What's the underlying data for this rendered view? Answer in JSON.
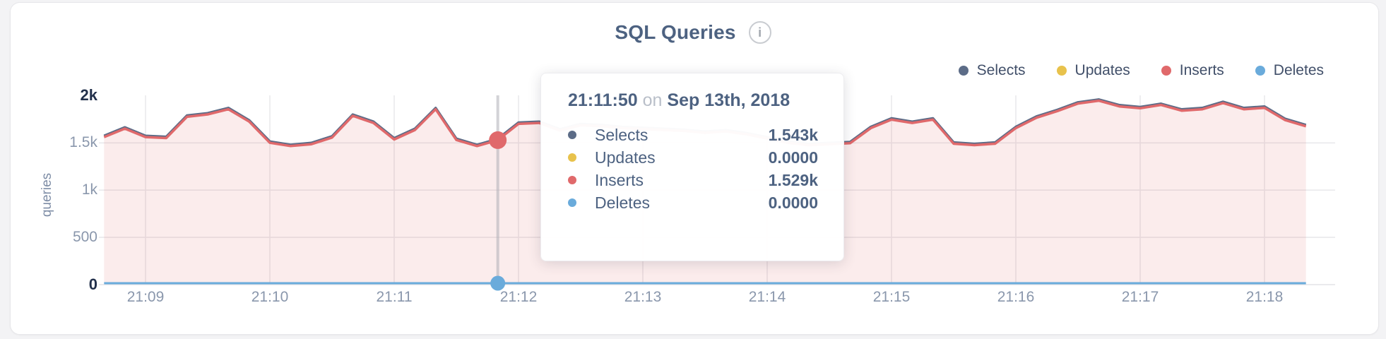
{
  "header": {
    "title": "SQL Queries",
    "info_icon_glyph": "i"
  },
  "legend": {
    "items": [
      {
        "label": "Selects",
        "color": "#5c6c87"
      },
      {
        "label": "Updates",
        "color": "#e8c24c"
      },
      {
        "label": "Inserts",
        "color": "#e0696b"
      },
      {
        "label": "Deletes",
        "color": "#6aabdb"
      }
    ]
  },
  "tooltip": {
    "time": "21:11:50",
    "connector": "on",
    "date": "Sep 13th, 2018",
    "rows": [
      {
        "label": "Selects",
        "value": "1.543k",
        "color": "#5c6c87"
      },
      {
        "label": "Updates",
        "value": "0.0000",
        "color": "#e8c24c"
      },
      {
        "label": "Inserts",
        "value": "1.529k",
        "color": "#e0696b"
      },
      {
        "label": "Deletes",
        "value": "0.0000",
        "color": "#6aabdb"
      }
    ]
  },
  "axes": {
    "y_label": "queries",
    "y_ticks": [
      {
        "label": "2k",
        "value": 2000,
        "strong": true
      },
      {
        "label": "1.5k",
        "value": 1500,
        "strong": false
      },
      {
        "label": "1k",
        "value": 1000,
        "strong": false
      },
      {
        "label": "500",
        "value": 500,
        "strong": false
      },
      {
        "label": "0",
        "value": 0,
        "strong": true
      }
    ],
    "x_ticks": [
      "21:09",
      "21:10",
      "21:11",
      "21:12",
      "21:13",
      "21:14",
      "21:15",
      "21:16",
      "21:17",
      "21:18"
    ]
  },
  "chart_data": {
    "type": "area",
    "title": "SQL Queries",
    "ylabel": "queries",
    "ylim": [
      0,
      2000
    ],
    "grid": true,
    "legend_position": "top-right",
    "x": [
      "21:08:40",
      "21:08:50",
      "21:09:00",
      "21:09:10",
      "21:09:20",
      "21:09:30",
      "21:09:40",
      "21:09:50",
      "21:10:00",
      "21:10:10",
      "21:10:20",
      "21:10:30",
      "21:10:40",
      "21:10:50",
      "21:11:00",
      "21:11:10",
      "21:11:20",
      "21:11:30",
      "21:11:40",
      "21:11:50",
      "21:12:00",
      "21:12:10",
      "21:12:20",
      "21:12:30",
      "21:12:40",
      "21:12:50",
      "21:13:00",
      "21:13:10",
      "21:13:20",
      "21:13:30",
      "21:13:40",
      "21:13:50",
      "21:14:00",
      "21:14:10",
      "21:14:20",
      "21:14:30",
      "21:14:40",
      "21:14:50",
      "21:15:00",
      "21:15:10",
      "21:15:20",
      "21:15:30",
      "21:15:40",
      "21:15:50",
      "21:16:00",
      "21:16:10",
      "21:16:20",
      "21:16:30",
      "21:16:40",
      "21:16:50",
      "21:17:00",
      "21:17:10",
      "21:17:20",
      "21:17:30",
      "21:17:40",
      "21:17:50",
      "21:18:00",
      "21:18:10",
      "21:18:20"
    ],
    "series": [
      {
        "name": "Selects",
        "color": "#5c6c87",
        "values": [
          1575,
          1665,
          1575,
          1565,
          1790,
          1815,
          1870,
          1740,
          1515,
          1480,
          1500,
          1570,
          1800,
          1725,
          1550,
          1650,
          1870,
          1545,
          1480,
          1543,
          1715,
          1725,
          1645,
          1700,
          1690,
          1670,
          1660,
          1650,
          1640,
          1620,
          1635,
          1605,
          1560,
          1515,
          1490,
          1500,
          1510,
          1670,
          1760,
          1725,
          1760,
          1505,
          1490,
          1505,
          1670,
          1780,
          1850,
          1930,
          1960,
          1900,
          1880,
          1915,
          1855,
          1870,
          1935,
          1870,
          1885,
          1755,
          1690
        ]
      },
      {
        "name": "Updates",
        "color": "#e8c24c",
        "values": [
          0,
          0,
          0,
          0,
          0,
          0,
          0,
          0,
          0,
          0,
          0,
          0,
          0,
          0,
          0,
          0,
          0,
          0,
          0,
          0,
          0,
          0,
          0,
          0,
          0,
          0,
          0,
          0,
          0,
          0,
          0,
          0,
          0,
          0,
          0,
          0,
          0,
          0,
          0,
          0,
          0,
          0,
          0,
          0,
          0,
          0,
          0,
          0,
          0,
          0,
          0,
          0,
          0,
          0,
          0,
          0,
          0,
          0,
          0
        ]
      },
      {
        "name": "Inserts",
        "color": "#e0696b",
        "values": [
          1561,
          1651,
          1561,
          1551,
          1776,
          1801,
          1856,
          1726,
          1501,
          1466,
          1486,
          1556,
          1786,
          1711,
          1536,
          1636,
          1856,
          1531,
          1466,
          1529,
          1701,
          1711,
          1631,
          1686,
          1676,
          1656,
          1646,
          1636,
          1626,
          1606,
          1621,
          1591,
          1546,
          1501,
          1476,
          1486,
          1496,
          1656,
          1746,
          1711,
          1746,
          1491,
          1476,
          1491,
          1656,
          1766,
          1836,
          1916,
          1946,
          1886,
          1866,
          1901,
          1841,
          1856,
          1921,
          1856,
          1871,
          1741,
          1676
        ]
      },
      {
        "name": "Deletes",
        "color": "#6aabdb",
        "values": [
          0,
          0,
          0,
          0,
          0,
          0,
          0,
          0,
          0,
          0,
          0,
          0,
          0,
          0,
          0,
          0,
          0,
          0,
          0,
          0,
          0,
          0,
          0,
          0,
          0,
          0,
          0,
          0,
          0,
          0,
          0,
          0,
          0,
          0,
          0,
          0,
          0,
          0,
          0,
          0,
          0,
          0,
          0,
          0,
          0,
          0,
          0,
          0,
          0,
          0,
          0,
          0,
          0,
          0,
          0,
          0,
          0,
          0,
          0
        ]
      }
    ],
    "hover_point": {
      "x": "21:11:50",
      "selects": 1543,
      "updates": 0,
      "inserts": 1529,
      "deletes": 0
    },
    "fill_color": "rgba(223,105,107,0.13)"
  }
}
